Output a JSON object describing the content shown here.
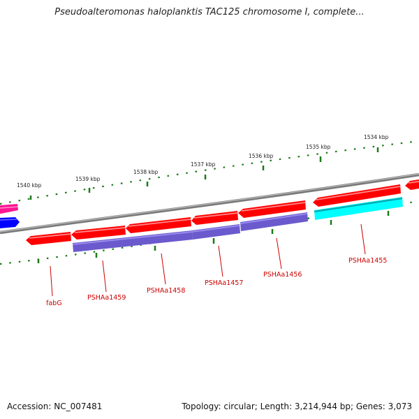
{
  "title": "Pseudoalteromonas haloplanktis TAC125 chromosome I, complete...",
  "footer": {
    "accession": "Accession: NC_007481",
    "summary": "Topology: circular; Length: 3,214,944 bp; Genes: 3,073"
  },
  "scale_labels": [
    "1540 kbp",
    "1539 kbp",
    "1538 kbp",
    "1537 kbp",
    "1536 kbp",
    "1535 kbp",
    "1534 kbp"
  ],
  "gene_labels": [
    "fabG",
    "PSHAa1459",
    "PSHAa1458",
    "PSHAa1457",
    "PSHAa1456",
    "PSHAa1455"
  ],
  "colors": {
    "backbone": "#808080",
    "forward_cds": "#ff0000",
    "reverse_cds": "#6a5acd",
    "highlight_cds": "#00ffff",
    "scale_ticks": "#1a7a1a",
    "label_lines": "#cc0000",
    "offscreen_pink": "#ff1493",
    "offscreen_blue": "#0000ff"
  }
}
